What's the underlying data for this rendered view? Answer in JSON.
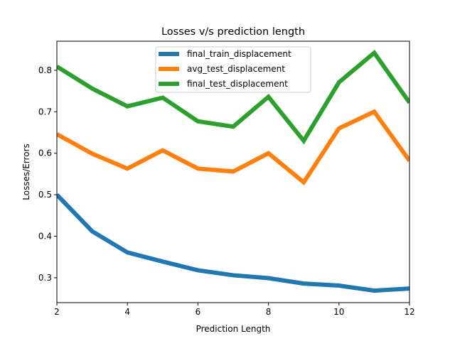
{
  "chart_data": {
    "type": "line",
    "title": "Losses v/s prediction length",
    "xlabel": "Prediction Length",
    "ylabel": "Losses/Errors",
    "x": [
      2,
      3,
      4,
      5,
      6,
      7,
      8,
      9,
      10,
      11,
      12
    ],
    "xlim": [
      2,
      12
    ],
    "ylim": [
      0.24,
      0.87
    ],
    "xticks": [
      2,
      4,
      6,
      8,
      10,
      12
    ],
    "yticks": [
      0.3,
      0.4,
      0.5,
      0.6,
      0.7,
      0.8
    ],
    "grid": false,
    "legend_position": "upper-center",
    "series": [
      {
        "name": "final_train_displacement",
        "color": "#1f77b4",
        "values": [
          0.5,
          0.412,
          0.361,
          0.339,
          0.318,
          0.306,
          0.299,
          0.286,
          0.281,
          0.269,
          0.274
        ]
      },
      {
        "name": "avg_test_displacement",
        "color": "#ff7f0e",
        "values": [
          0.646,
          0.599,
          0.563,
          0.607,
          0.563,
          0.556,
          0.6,
          0.53,
          0.66,
          0.7,
          0.582
        ]
      },
      {
        "name": "final_test_displacement",
        "color": "#2ca02c",
        "values": [
          0.809,
          0.756,
          0.713,
          0.734,
          0.677,
          0.664,
          0.736,
          0.63,
          0.771,
          0.842,
          0.722
        ]
      }
    ]
  }
}
